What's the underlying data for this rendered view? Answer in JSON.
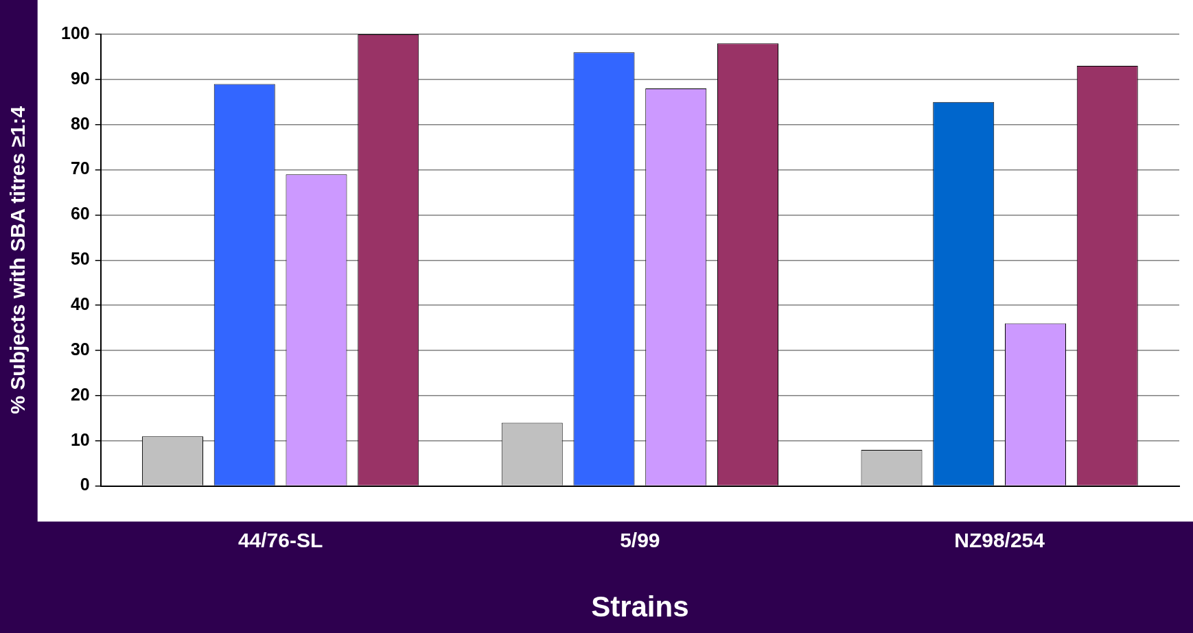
{
  "chart_data": {
    "type": "bar",
    "ylabel": "% Subjects with SBA titres ≥1:4",
    "xlabel": "Strains",
    "categories": [
      "44/76-SL",
      "5/99",
      "NZ98/254"
    ],
    "series": [
      {
        "color": "#c0c0c0",
        "values": [
          11,
          14,
          8
        ]
      },
      {
        "colors": [
          "#3366ff",
          "#3366ff",
          "#0066cc"
        ],
        "values": [
          89,
          96,
          85
        ]
      },
      {
        "color": "#cc99ff",
        "values": [
          69,
          88,
          36
        ]
      },
      {
        "color": "#993366",
        "values": [
          100,
          98,
          93
        ]
      }
    ],
    "ylim": [
      0,
      100
    ],
    "yticks": [
      0,
      10,
      20,
      30,
      40,
      50,
      60,
      70,
      80,
      90,
      100
    ],
    "grid": "y",
    "legend": false
  }
}
